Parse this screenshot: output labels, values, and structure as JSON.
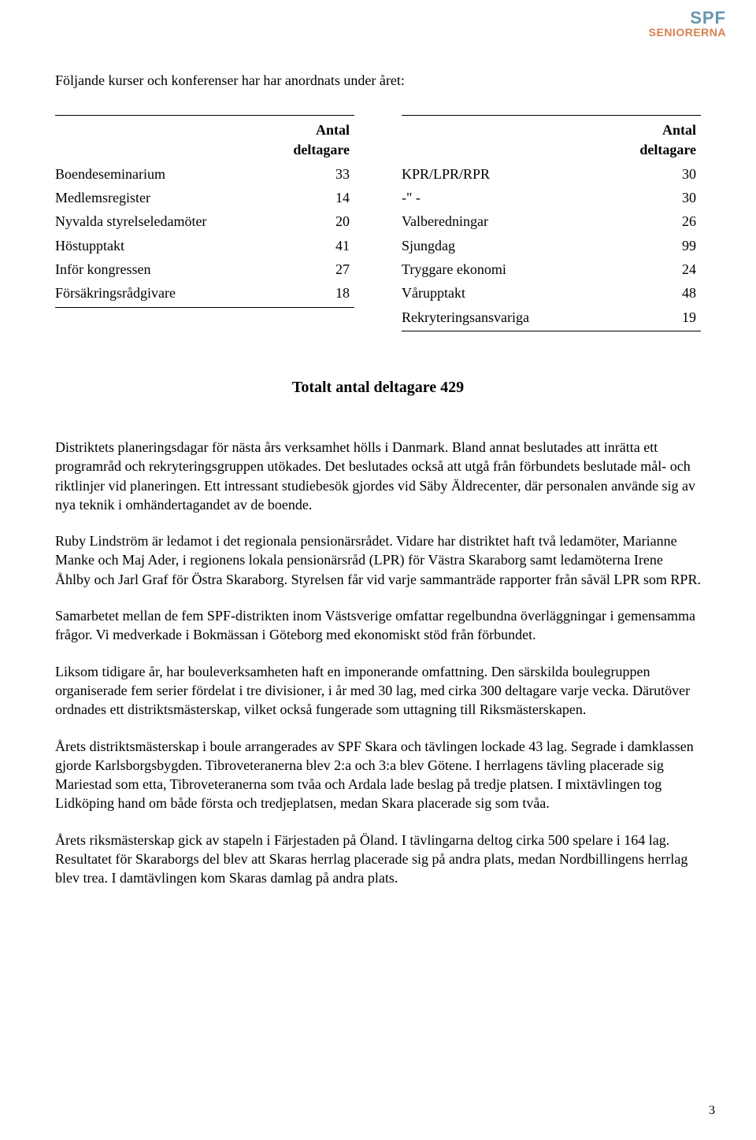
{
  "logo": {
    "line1": "SPF",
    "line2": "SENIORERNA"
  },
  "intro": "Följande kurser och konferenser har har anordnats under året:",
  "tableLeft": {
    "header": "Antal deltagare",
    "rows": [
      {
        "label": "Boendeseminarium",
        "value": "33"
      },
      {
        "label": "Medlemsregister",
        "value": "14"
      },
      {
        "label": "Nyvalda styrelseledamöter",
        "value": "20"
      },
      {
        "label": "Höstupptakt",
        "value": "41"
      },
      {
        "label": "Inför kongressen",
        "value": "27"
      },
      {
        "label": "Försäkringsrådgivare",
        "value": "18"
      }
    ]
  },
  "tableRight": {
    "header": "Antal deltagare",
    "rows": [
      {
        "label": "KPR/LPR/RPR",
        "value": "30"
      },
      {
        "label": "-\" -",
        "value": "30"
      },
      {
        "label": "Valberedningar",
        "value": "26"
      },
      {
        "label": "Sjungdag",
        "value": "99"
      },
      {
        "label": "Tryggare ekonomi",
        "value": "24"
      },
      {
        "label": "Vårupptakt",
        "value": "48"
      },
      {
        "label": "Rekryteringsansvariga",
        "value": "19"
      }
    ]
  },
  "total": "Totalt antal deltagare 429",
  "paragraphs": [
    "Distriktets planeringsdagar för nästa års verksamhet hölls i Danmark. Bland annat beslutades att inrätta ett programråd och rekryteringsgruppen utökades. Det beslutades också att utgå från förbundets beslutade mål- och riktlinjer vid planeringen. Ett intressant studiebesök gjordes vid Säby Äldrecenter, där personalen använde sig av nya teknik i omhändertagandet av de boende.",
    "Ruby Lindström är ledamot i det regionala pensionärsrådet. Vidare har distriktet haft två ledamöter, Marianne Manke och Maj Ader, i regionens lokala pensionärsråd (LPR) för Västra Skaraborg samt ledamöterna Irene Åhlby och Jarl Graf för Östra Skaraborg. Styrelsen får vid varje sammanträde rapporter från såväl LPR som RPR.",
    "Samarbetet mellan de fem SPF-distrikten inom Västsverige omfattar regelbundna överläggningar i gemensamma frågor. Vi medverkade i Bokmässan i Göteborg med ekonomiskt stöd från förbundet.",
    "Liksom tidigare år, har bouleverksamheten haft en imponerande omfattning. Den särskilda boulegruppen organiserade fem serier fördelat i tre divisioner, i år med 30 lag, med cirka 300 deltagare varje vecka. Därutöver ordnades ett distriktsmästerskap, vilket också fungerade som uttagning till Riksmästerskapen.",
    "Årets distriktsmästerskap i boule arrangerades av SPF Skara och tävlingen lockade 43 lag. Segrade i damklassen gjorde Karlsborgsbygden. Tibroveteranerna blev 2:a och 3:a blev Götene. I herrlagens tävling placerade sig Mariestad som etta, Tibroveteranerna som tvåa och Ardala lade beslag på tredje platsen. I mixtävlingen tog Lidköping hand om både första och tredjeplatsen, medan Skara placerade sig som tvåa.",
    "Årets riksmästerskap gick av stapeln i Färjestaden på Öland. I tävlingarna deltog cirka 500 spelare i 164 lag. Resultatet för Skaraborgs del blev att Skaras herrlag placerade sig på andra plats, medan Nordbillingens herrlag blev trea. I damtävlingen kom Skaras damlag på andra plats."
  ],
  "pageNum": "3"
}
